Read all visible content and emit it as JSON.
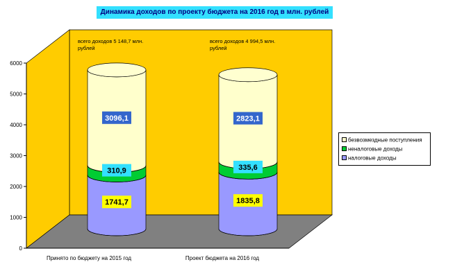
{
  "chart_data": {
    "type": "bar",
    "stacked": true,
    "style": "3d-cylinder",
    "title": "Динамика доходов по проекту бюджета на 2016 год в млн. рублей",
    "categories": [
      "Принято по бюджету на 2015 год",
      "Проект бюджета на 2016 год"
    ],
    "series": [
      {
        "name": "налоговые доходы",
        "values": [
          1741.7,
          1835.8
        ],
        "labels": [
          "1741,7",
          "1835,8"
        ],
        "color": "#9999ff",
        "label_bg": "#ffff00",
        "label_color": "#000000"
      },
      {
        "name": "неналоговые доходы",
        "values": [
          310.9,
          335.6
        ],
        "labels": [
          "310,9",
          "335,6"
        ],
        "color": "#00cc33",
        "label_bg": "#33e0ff",
        "label_color": "#000000"
      },
      {
        "name": "безвозмездные поступления",
        "values": [
          3096.1,
          2823.1
        ],
        "labels": [
          "3096,1",
          "2823,1"
        ],
        "color": "#ffffcc",
        "label_bg": "#3366cc",
        "label_color": "#ffffff"
      }
    ],
    "annotations": [
      "всего доходов 5 148,7 млн. рублей",
      "всего доходов 4 994,5 млн. рублей"
    ],
    "yticks": [
      "0",
      "1000",
      "2000",
      "3000",
      "4000",
      "5000",
      "6000"
    ],
    "ylim": [
      0,
      6000
    ],
    "legend_position": "right",
    "grid": false,
    "wall_color": "#ffcc00",
    "floor_color": "#808080"
  }
}
